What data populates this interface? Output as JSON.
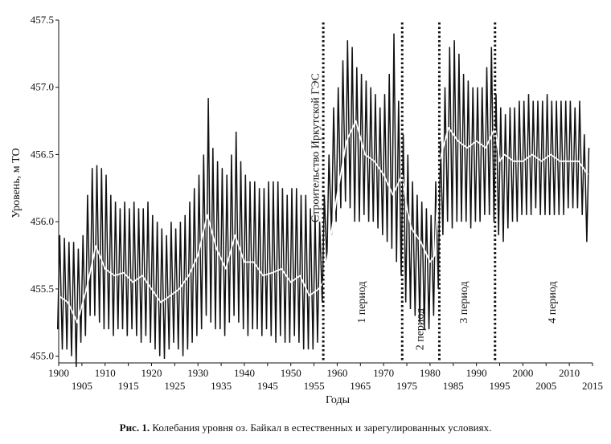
{
  "chart_data": {
    "type": "line",
    "xlabel": "Годы",
    "ylabel": "Уровень, м ТО",
    "xlim": [
      1900,
      2015
    ],
    "ylim": [
      454.95,
      457.5
    ],
    "x_ticks_upper": [
      1900,
      1910,
      1920,
      1930,
      1940,
      1950,
      1960,
      1970,
      1980,
      1990,
      2000,
      2010
    ],
    "x_ticks_lower": [
      1905,
      1915,
      1925,
      1935,
      1945,
      1955,
      1965,
      1975,
      1985,
      1995,
      2005,
      2015
    ],
    "y_ticks": [
      "455.0",
      "455.5",
      "456.0",
      "456.5",
      "457.0",
      "457.5"
    ],
    "grid": false,
    "series": [
      {
        "role": "annual level range (min–max)",
        "color": "#111111",
        "x": [
          1900,
          1901,
          1902,
          1903,
          1904,
          1905,
          1906,
          1907,
          1908,
          1909,
          1910,
          1911,
          1912,
          1913,
          1914,
          1915,
          1916,
          1917,
          1918,
          1919,
          1920,
          1921,
          1922,
          1923,
          1924,
          1925,
          1926,
          1927,
          1928,
          1929,
          1930,
          1931,
          1932,
          1933,
          1934,
          1935,
          1936,
          1937,
          1938,
          1939,
          1940,
          1941,
          1942,
          1943,
          1944,
          1945,
          1946,
          1947,
          1948,
          1949,
          1950,
          1951,
          1952,
          1953,
          1954,
          1955,
          1956,
          1957,
          1958,
          1959,
          1960,
          1961,
          1962,
          1963,
          1964,
          1965,
          1966,
          1967,
          1968,
          1969,
          1970,
          1971,
          1972,
          1973,
          1974,
          1975,
          1976,
          1977,
          1978,
          1979,
          1980,
          1981,
          1982,
          1983,
          1984,
          1985,
          1986,
          1987,
          1988,
          1989,
          1990,
          1991,
          1992,
          1993,
          1994,
          1995,
          1996,
          1997,
          1998,
          1999,
          2000,
          2001,
          2002,
          2003,
          2004,
          2005,
          2006,
          2007,
          2008,
          2009,
          2010,
          2011,
          2012,
          2013,
          2014
        ],
        "min": [
          455.2,
          455.05,
          455.05,
          455.0,
          454.92,
          455.1,
          455.15,
          455.3,
          455.3,
          455.25,
          455.2,
          455.2,
          455.15,
          455.2,
          455.2,
          455.15,
          455.2,
          455.15,
          455.1,
          455.15,
          455.1,
          455.05,
          455.0,
          454.98,
          455.05,
          455.1,
          455.05,
          455.0,
          455.05,
          455.1,
          455.15,
          455.2,
          455.3,
          455.25,
          455.2,
          455.2,
          455.15,
          455.25,
          455.3,
          455.25,
          455.2,
          455.15,
          455.2,
          455.2,
          455.15,
          455.2,
          455.15,
          455.1,
          455.15,
          455.1,
          455.1,
          455.15,
          455.1,
          455.05,
          455.05,
          455.05,
          455.1,
          455.4,
          455.7,
          455.9,
          456.0,
          456.1,
          456.15,
          456.1,
          456.0,
          456.0,
          456.05,
          456.0,
          456.0,
          455.95,
          455.9,
          455.85,
          455.8,
          455.7,
          455.6,
          455.4,
          455.35,
          455.3,
          455.25,
          455.2,
          455.2,
          455.3,
          455.5,
          455.9,
          456.0,
          455.95,
          456.0,
          456.0,
          456.0,
          455.95,
          456.0,
          456.0,
          456.05,
          456.05,
          456.0,
          455.9,
          455.85,
          455.95,
          456.0,
          456.0,
          456.05,
          456.05,
          456.05,
          456.1,
          456.05,
          456.05,
          456.05,
          456.05,
          456.05,
          456.05,
          456.1,
          456.1,
          456.1,
          456.05,
          455.85
        ],
        "max": [
          455.9,
          455.88,
          455.85,
          455.85,
          455.8,
          455.9,
          456.2,
          456.4,
          456.42,
          456.4,
          456.35,
          456.2,
          456.15,
          456.1,
          456.15,
          456.1,
          456.15,
          456.1,
          456.1,
          456.15,
          456.05,
          456.0,
          455.95,
          455.9,
          456.0,
          455.95,
          456.0,
          456.05,
          456.15,
          456.25,
          456.35,
          456.5,
          456.92,
          456.55,
          456.45,
          456.4,
          456.35,
          456.5,
          456.67,
          456.45,
          456.35,
          456.3,
          456.3,
          456.25,
          456.25,
          456.3,
          456.3,
          456.3,
          456.25,
          456.2,
          456.25,
          456.25,
          456.2,
          456.2,
          456.1,
          456.05,
          456.0,
          456.2,
          456.5,
          456.85,
          457.0,
          457.2,
          457.35,
          457.3,
          457.15,
          457.1,
          457.05,
          457.0,
          456.95,
          456.85,
          456.95,
          457.1,
          457.4,
          456.9,
          456.65,
          456.5,
          456.3,
          456.2,
          456.15,
          456.1,
          456.05,
          456.3,
          456.6,
          457.0,
          457.3,
          457.35,
          457.25,
          457.1,
          457.05,
          457.0,
          457.0,
          457.0,
          457.15,
          457.3,
          456.95,
          456.85,
          456.8,
          456.85,
          456.85,
          456.9,
          456.9,
          456.95,
          456.9,
          456.9,
          456.9,
          456.95,
          456.9,
          456.9,
          456.9,
          456.9,
          456.9,
          456.85,
          456.9,
          456.65,
          456.55
        ]
      },
      {
        "role": "annual mean level",
        "color": "#ffffff",
        "x": [
          1900,
          1902,
          1904,
          1906,
          1908,
          1910,
          1912,
          1914,
          1916,
          1918,
          1920,
          1922,
          1924,
          1926,
          1928,
          1930,
          1932,
          1934,
          1936,
          1938,
          1940,
          1942,
          1944,
          1946,
          1948,
          1950,
          1952,
          1954,
          1956,
          1957,
          1958,
          1960,
          1962,
          1964,
          1966,
          1968,
          1970,
          1972,
          1974,
          1975,
          1976,
          1978,
          1980,
          1981,
          1982,
          1984,
          1986,
          1988,
          1990,
          1992,
          1994,
          1995,
          1996,
          1998,
          2000,
          2002,
          2004,
          2006,
          2008,
          2010,
          2012,
          2014
        ],
        "y": [
          455.45,
          455.4,
          455.25,
          455.5,
          455.82,
          455.65,
          455.6,
          455.62,
          455.55,
          455.6,
          455.5,
          455.4,
          455.45,
          455.5,
          455.6,
          455.75,
          456.05,
          455.8,
          455.65,
          455.9,
          455.7,
          455.7,
          455.6,
          455.62,
          455.65,
          455.55,
          455.6,
          455.45,
          455.5,
          455.55,
          455.75,
          456.2,
          456.6,
          456.75,
          456.5,
          456.45,
          456.35,
          456.2,
          456.35,
          456.1,
          455.95,
          455.85,
          455.7,
          455.75,
          456.45,
          456.7,
          456.6,
          456.55,
          456.6,
          456.55,
          456.7,
          456.45,
          456.5,
          456.45,
          456.45,
          456.5,
          456.45,
          456.5,
          456.45,
          456.45,
          456.45,
          456.35
        ]
      }
    ],
    "vertical_lines": [
      {
        "x": 1957,
        "style": "dotted"
      },
      {
        "x": 1974,
        "style": "dotted"
      },
      {
        "x": 1982,
        "style": "dotted"
      },
      {
        "x": 1994,
        "style": "dotted"
      }
    ],
    "annotations": [
      {
        "text": "Строительство Иркутской ГЭС",
        "x": 1956,
        "y": 456.55
      },
      {
        "text": "1 период",
        "x": 1966,
        "y": 455.4
      },
      {
        "text": "2 период",
        "x": 1978.5,
        "y": 455.2
      },
      {
        "text": "3 период",
        "x": 1988,
        "y": 455.4
      },
      {
        "text": "4 период",
        "x": 2007,
        "y": 455.4
      }
    ]
  },
  "caption": {
    "label": "Рис. 1.",
    "text": " Колебания уровня оз. Байкал в естественных и зарегулированных условиях."
  }
}
